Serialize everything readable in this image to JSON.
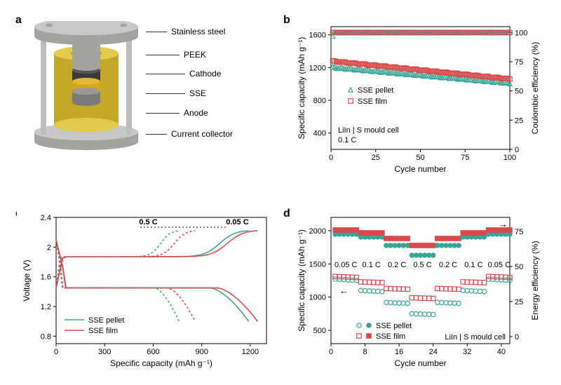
{
  "panel_labels": {
    "a": "a",
    "b": "b",
    "c": "c",
    "d": "d"
  },
  "panel_a": {
    "callouts": [
      {
        "label": "Stainless steel",
        "y": 4,
        "line_w": 30
      },
      {
        "label": "PEEK",
        "y": 37,
        "line_w": 48
      },
      {
        "label": "Cathode",
        "y": 64,
        "line_w": 56
      },
      {
        "label": "SSE",
        "y": 92,
        "line_w": 56
      },
      {
        "label": "Anode",
        "y": 120,
        "line_w": 48
      },
      {
        "label": "Current collector",
        "y": 150,
        "line_w": 30
      }
    ],
    "colors": {
      "steel": "#c8c9c6",
      "steel_dark": "#a4a39e",
      "peek": "#e3ca4b",
      "peek_dark": "#c3a827",
      "cathode": "#3a3a3a",
      "sse": "#d8a617",
      "anode": "#7a7a7a",
      "rod": "#bdbdbd"
    }
  },
  "panel_b": {
    "x_label": "Cycle number",
    "y_left_label": "Specific capacity (mAh g⁻¹)",
    "y_right_label": "Coulombic efficiency (%)",
    "x_ticks": [
      0,
      25,
      50,
      75,
      100
    ],
    "y_left_ticks": [
      400,
      800,
      1200,
      1600
    ],
    "y_right_ticks": [
      0,
      25,
      50,
      75,
      100
    ],
    "xlim": [
      0,
      100
    ],
    "ylim_left": [
      200,
      1700
    ],
    "ylim_right": [
      0,
      105
    ],
    "annotation_lines": [
      "LiIn | S mould cell",
      "0.1 C"
    ],
    "legend": [
      {
        "label": "SSE pellet",
        "marker": "triangle-open",
        "color": "#3aa597"
      },
      {
        "label": "SSE film",
        "marker": "square-open",
        "color": "#d94a4a"
      }
    ],
    "series": {
      "pellet_cap": {
        "color": "#3aa597",
        "values_start": 1205,
        "values_end": 1010
      },
      "film_cap": {
        "color": "#d94a4a",
        "values_start": 1280,
        "values_end": 1060
      },
      "pellet_eff": {
        "color": "#3aa597",
        "value": 100
      },
      "film_eff": {
        "color": "#d94a4a",
        "value": 100
      }
    },
    "grid_color": "#d9d9d9",
    "frame_color": "#000000"
  },
  "panel_c": {
    "x_label": "Specific capacity (mAh g⁻¹)",
    "y_label": "Voltage (V)",
    "x_ticks": [
      0,
      300,
      600,
      900,
      1200
    ],
    "y_ticks": [
      0.8,
      1.2,
      1.6,
      2.0,
      2.4
    ],
    "xlim": [
      0,
      1300
    ],
    "ylim": [
      0.7,
      2.4
    ],
    "rate_labels": [
      {
        "text": "0.5 C",
        "x": 570
      },
      {
        "text": "0.05 C",
        "x": 1120
      }
    ],
    "legend": [
      {
        "label": "SSE pellet",
        "color": "#3aa597"
      },
      {
        "label": "SSE film",
        "color": "#d94a4a"
      }
    ],
    "curves": {
      "pellet_005_charge": {
        "color": "#3aa597",
        "dash": "none",
        "end_x": 1190
      },
      "pellet_005_discharge": {
        "color": "#3aa597",
        "dash": "none",
        "end_x": 1190
      },
      "film_005_charge": {
        "color": "#d94a4a",
        "dash": "none",
        "end_x": 1245
      },
      "film_005_discharge": {
        "color": "#d94a4a",
        "dash": "none",
        "end_x": 1245
      },
      "pellet_05_charge": {
        "color": "#3aa597",
        "dash": "3,3",
        "end_x": 760
      },
      "pellet_05_discharge": {
        "color": "#3aa597",
        "dash": "3,3",
        "end_x": 760
      },
      "film_05_charge": {
        "color": "#d94a4a",
        "dash": "3,3",
        "end_x": 860
      },
      "film_05_discharge": {
        "color": "#d94a4a",
        "dash": "3,3",
        "end_x": 860
      }
    }
  },
  "panel_d": {
    "x_label": "Cycle number",
    "y_left_label": "Specific capacity (mAh g⁻¹)",
    "y_right_label": "Energy efficiency (%)",
    "x_ticks": [
      0,
      8,
      16,
      24,
      32,
      40
    ],
    "y_left_ticks": [
      500,
      1000,
      1500,
      2000
    ],
    "y_right_ticks": [
      0,
      25,
      50,
      75
    ],
    "xlim": [
      0,
      42
    ],
    "ylim_left": [
      300,
      2200
    ],
    "ylim_right": [
      -5,
      85
    ],
    "annotation": "LiIn | S mould cell",
    "rate_segments": [
      {
        "label": "0.05 C",
        "cycles": [
          1,
          6
        ]
      },
      {
        "label": "0.1 C",
        "cycles": [
          7,
          12
        ]
      },
      {
        "label": "0.2 C",
        "cycles": [
          13,
          18
        ]
      },
      {
        "label": "0.5 C",
        "cycles": [
          19,
          24
        ]
      },
      {
        "label": "0.2 C",
        "cycles": [
          25,
          30
        ]
      },
      {
        "label": "0.1 C",
        "cycles": [
          31,
          36
        ]
      },
      {
        "label": "0.05 C",
        "cycles": [
          37,
          42
        ]
      }
    ],
    "legend": [
      {
        "label": "SSE pellet",
        "open_marker": "circle-open",
        "fill_marker": "circle",
        "color": "#3aa597"
      },
      {
        "label": "SSE film",
        "open_marker": "square-open",
        "fill_marker": "square",
        "color": "#d94a4a"
      }
    ],
    "cap_by_rate": {
      "pellet": {
        "0.05": 1270,
        "0.1": 1100,
        "0.2": 920,
        "0.5": 750
      },
      "film": {
        "0.05": 1310,
        "0.1": 1230,
        "0.2": 1130,
        "0.5": 990
      }
    },
    "eff_by_rate": {
      "pellet": {
        "0.05": 73,
        "0.1": 71,
        "0.2": 65,
        "0.5": 58
      },
      "film": {
        "0.05": 76,
        "0.1": 74,
        "0.2": 70,
        "0.5": 65
      }
    }
  }
}
